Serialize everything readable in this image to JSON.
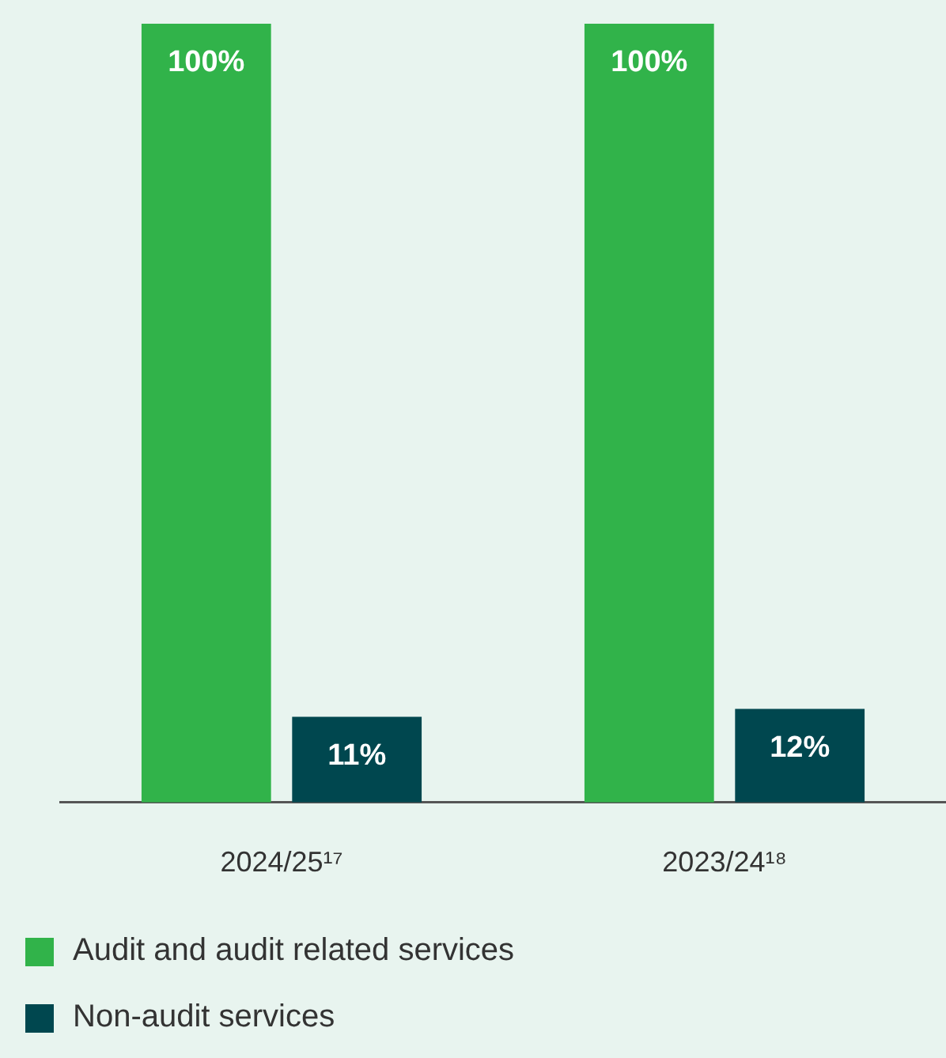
{
  "chart_data": {
    "type": "bar",
    "categories": [
      "2024/25¹⁷",
      "2023/24¹⁸"
    ],
    "series": [
      {
        "name": "Audit and audit related services",
        "color": "#31b34a",
        "values": [
          100,
          100
        ],
        "value_labels": [
          "100%",
          "100%"
        ]
      },
      {
        "name": "Non-audit services",
        "color": "#00474f",
        "values": [
          11,
          12
        ],
        "value_labels": [
          "11%",
          "12%"
        ]
      }
    ],
    "legend": "bottom left",
    "grid": false
  }
}
